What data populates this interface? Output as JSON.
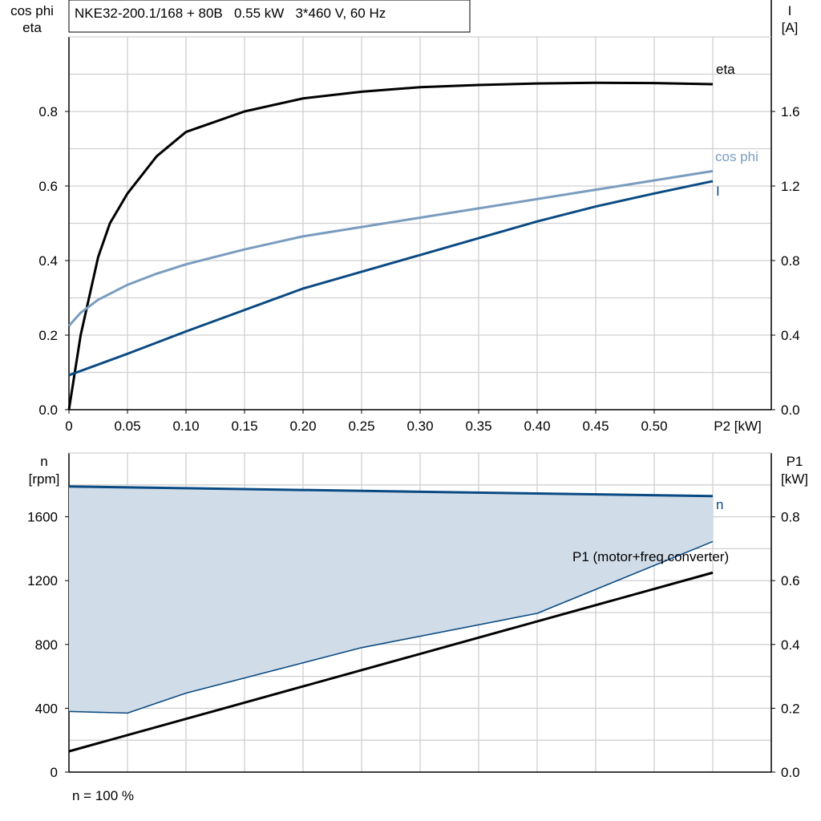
{
  "chart_data": [
    {
      "type": "line",
      "title": "NKE32-200.1/168 + 80B   0.55 kW   3*460 V, 60 Hz",
      "xlabel": "P2 [kW]",
      "ylabel_left": [
        "cos phi",
        "eta"
      ],
      "ylabel_right": [
        "I",
        "[A]"
      ],
      "xlim": [
        0,
        0.6
      ],
      "ylim_left": [
        0,
        1.0
      ],
      "ylim_right": [
        0,
        2.0
      ],
      "x_ticks": [
        "0",
        "0.05",
        "0.10",
        "0.15",
        "0.20",
        "0.25",
        "0.30",
        "0.35",
        "0.40",
        "0.45",
        "0.50"
      ],
      "y_ticks_left": [
        "0.0",
        "0.2",
        "0.4",
        "0.6",
        "0.8"
      ],
      "y_ticks_right": [
        "0.0",
        "0.4",
        "0.8",
        "1.2",
        "1.6"
      ],
      "grid": true,
      "series": [
        {
          "name": "eta",
          "axis": "left",
          "color": "#000000",
          "x": [
            0,
            0.01,
            0.025,
            0.035,
            0.05,
            0.075,
            0.1,
            0.15,
            0.2,
            0.25,
            0.3,
            0.35,
            0.4,
            0.45,
            0.5,
            0.55
          ],
          "y": [
            0,
            0.2,
            0.41,
            0.5,
            0.58,
            0.68,
            0.745,
            0.8,
            0.835,
            0.853,
            0.865,
            0.871,
            0.875,
            0.877,
            0.876,
            0.873
          ]
        },
        {
          "name": "cos phi",
          "axis": "left",
          "color": "#7a9cbf",
          "x": [
            0,
            0.01,
            0.025,
            0.05,
            0.075,
            0.1,
            0.15,
            0.2,
            0.25,
            0.3,
            0.35,
            0.4,
            0.45,
            0.5,
            0.55
          ],
          "y": [
            0.225,
            0.26,
            0.295,
            0.335,
            0.365,
            0.39,
            0.43,
            0.465,
            0.49,
            0.515,
            0.54,
            0.565,
            0.59,
            0.615,
            0.64
          ]
        },
        {
          "name": "I",
          "axis": "right",
          "color": "#0a4a82",
          "x": [
            0,
            0.05,
            0.1,
            0.15,
            0.2,
            0.25,
            0.3,
            0.35,
            0.4,
            0.45,
            0.5,
            0.55
          ],
          "y": [
            0.185,
            0.3,
            0.42,
            0.535,
            0.65,
            0.74,
            0.83,
            0.92,
            1.01,
            1.09,
            1.16,
            1.226
          ]
        }
      ]
    },
    {
      "type": "area",
      "ylabel_left": [
        "n",
        "[rpm]"
      ],
      "ylabel_right": [
        "P1",
        "[kW]"
      ],
      "xlim": [
        0,
        0.6
      ],
      "ylim_left": [
        0,
        2000
      ],
      "ylim_right": [
        0,
        1.0
      ],
      "y_ticks_left": [
        "0",
        "400",
        "800",
        "1200",
        "1600"
      ],
      "y_ticks_right": [
        "0.0",
        "0.2",
        "0.4",
        "0.6",
        "0.8"
      ],
      "grid": true,
      "footnote": "n = 100 %",
      "fill_color": "#d0dce8",
      "series": [
        {
          "name": "n",
          "axis": "left",
          "color": "#0a4a82",
          "x": [
            0,
            0.55
          ],
          "y": [
            1790,
            1730
          ]
        },
        {
          "axis": "left",
          "color": "#0a4a82",
          "role": "lower-speed-limit",
          "x": [
            0,
            0.05,
            0.1,
            0.25,
            0.4,
            0.55
          ],
          "y": [
            380,
            370,
            495,
            780,
            995,
            1445
          ]
        },
        {
          "name": "P1 (motor+freq.converter)",
          "axis": "right",
          "color": "#000000",
          "x": [
            0,
            0.55
          ],
          "y": [
            0.065,
            0.625
          ]
        }
      ]
    }
  ]
}
